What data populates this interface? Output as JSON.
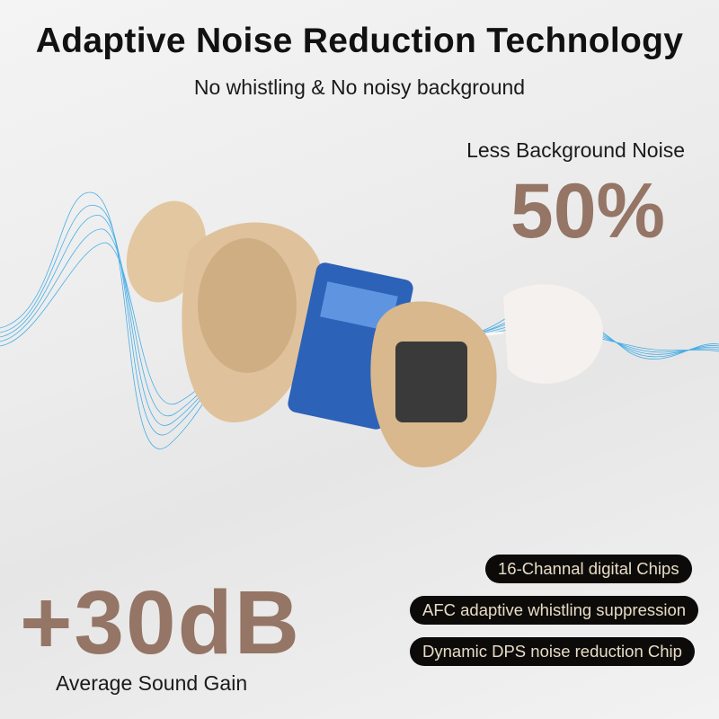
{
  "header": {
    "title": "Adaptive Noise Reduction Technology",
    "subtitle": "No whistling & No noisy background"
  },
  "noise_stat": {
    "label": "Less Background Noise",
    "value": "50%"
  },
  "gain_stat": {
    "value": "+30dB",
    "label": "Average Sound Gain"
  },
  "features": [
    "16-Channal digital Chips",
    "AFC adaptive whistling suppression",
    "Dynamic DPS noise reduction Chip"
  ],
  "colors": {
    "accent": "#957565",
    "pill_bg": "#0d0b09",
    "pill_text": "#e8dcc6",
    "wave": "#1e9be0"
  }
}
